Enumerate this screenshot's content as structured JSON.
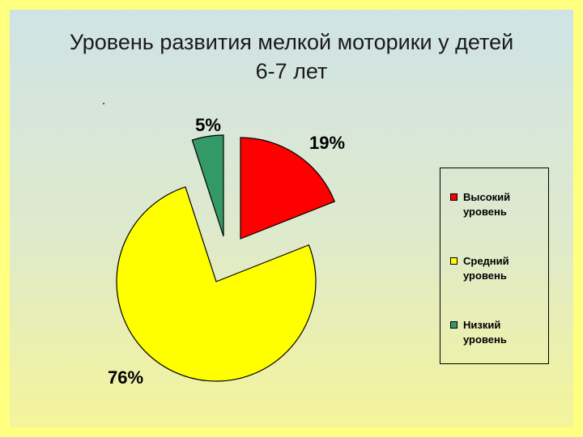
{
  "title": {
    "line1": "Уровень  развития мелкой моторики у детей",
    "line2": "6-7 лет"
  },
  "chart_data": {
    "type": "pie",
    "title": "Уровень  развития мелкой моторики у детей 6-7 лет",
    "slices": [
      {
        "label": "Высокий уровень",
        "value": 19,
        "display": "19%",
        "color": "#ff0000"
      },
      {
        "label": "Средний уровень",
        "value": 76,
        "display": "76%",
        "color": "#ffff00"
      },
      {
        "label": "Низкий уровень",
        "value": 5,
        "display": "5%",
        "color": "#339966"
      }
    ],
    "legend_position": "right",
    "exploded": true
  }
}
